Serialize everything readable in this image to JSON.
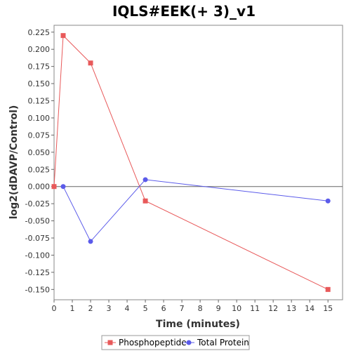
{
  "chart_data": {
    "type": "line",
    "title": "IQLS#EEK(+ 3)_v1",
    "xlabel": "Time (minutes)",
    "ylabel": "log2(dDAVP/Control)",
    "xlim": [
      0,
      15.8
    ],
    "ylim": [
      -0.165,
      0.235
    ],
    "xticks": [
      0,
      1,
      2,
      3,
      4,
      5,
      6,
      7,
      8,
      9,
      10,
      11,
      12,
      13,
      14,
      15
    ],
    "xtick_labels": [
      "0",
      "1",
      "2",
      "3",
      "4",
      "5",
      "6",
      "7",
      "8",
      "9",
      "10",
      "11",
      "12",
      "13",
      "14",
      "15"
    ],
    "yticks": [
      0.225,
      0.2,
      0.175,
      0.15,
      0.125,
      0.1,
      0.075,
      0.05,
      0.025,
      0,
      -0.025,
      -0.05,
      -0.075,
      -0.1,
      -0.125,
      -0.15
    ],
    "ytick_labels": [
      "0.225",
      "0.200",
      "0.175",
      "0.150",
      "0.125",
      "0.100",
      "0.075",
      "0.050",
      "0.025",
      "0.000",
      "-0.025",
      "-0.050",
      "-0.075",
      "-0.100",
      "-0.125",
      "-0.150"
    ],
    "zero_line": true,
    "grid": false,
    "legend_position": "bottom",
    "series": [
      {
        "name": "Phosphopeptide",
        "color": "#e8595a",
        "marker": "square",
        "x": [
          0,
          0.5,
          2,
          5,
          15
        ],
        "values": [
          0.0,
          0.22,
          0.18,
          -0.021,
          -0.15
        ]
      },
      {
        "name": "Total Protein",
        "color": "#5b5bea",
        "marker": "circle",
        "x": [
          0.5,
          2,
          5,
          15
        ],
        "values": [
          0.0,
          -0.08,
          0.01,
          -0.021
        ]
      }
    ]
  }
}
